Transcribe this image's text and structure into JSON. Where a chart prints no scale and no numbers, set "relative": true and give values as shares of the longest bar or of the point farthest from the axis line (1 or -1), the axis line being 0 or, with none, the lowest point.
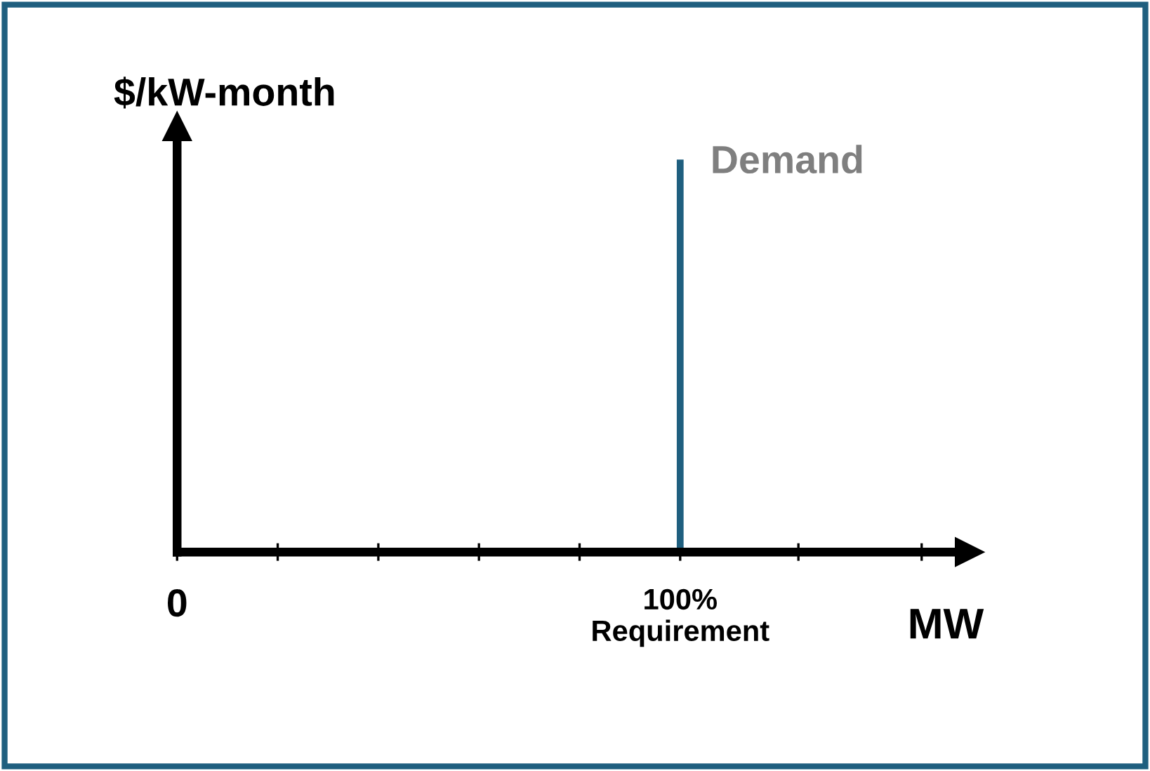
{
  "chart_data": {
    "type": "line",
    "ylabel": "$/kW-month",
    "xlabel": "MW",
    "relative": true,
    "xlim": [
      0,
      157.5
    ],
    "xticks": [
      0,
      {
        "value": 20,
        "label": null
      },
      {
        "value": 40,
        "label": null
      },
      {
        "value": 60,
        "label": null
      },
      {
        "value": 80,
        "label": null
      },
      {
        "value": 100,
        "label": "100%\nRequirement"
      },
      {
        "value": 123.5,
        "label": null
      },
      {
        "value": 148,
        "label": null
      }
    ],
    "series": [
      {
        "name": "Demand",
        "color": "#1f5f7f",
        "x": [
          100,
          100
        ],
        "values": [
          0,
          1
        ]
      }
    ],
    "grid": false,
    "legend": false,
    "marker": "none",
    "line_style": "solid"
  }
}
